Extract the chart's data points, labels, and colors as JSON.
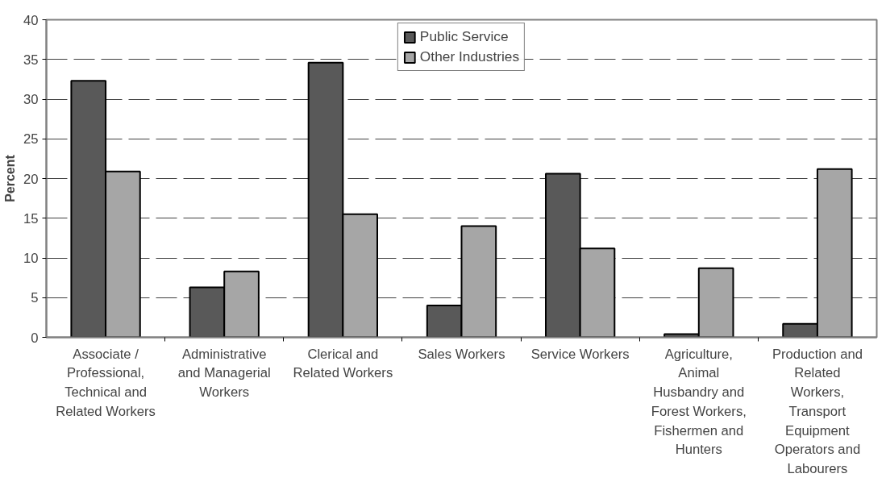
{
  "chart_data": {
    "type": "bar",
    "ylabel": "Percent",
    "categories": [
      "Associate / Professional, Technical and Related Workers",
      "Administrative and Managerial Workers",
      "Clerical and Related Workers",
      "Sales Workers",
      "Service Workers",
      "Agriculture, Animal Husbandry and Forest Workers, Fishermen and Hunters",
      "Production and Related Workers, Transport Equipment Operators and Labourers"
    ],
    "series": [
      {
        "name": "Public Service",
        "color": "#595959",
        "values": [
          32.3,
          6.3,
          34.6,
          4.0,
          20.6,
          0.4,
          1.7
        ]
      },
      {
        "name": "Other Industries",
        "color": "#a6a6a6",
        "values": [
          20.9,
          8.3,
          15.5,
          14.0,
          11.2,
          8.7,
          21.2
        ]
      }
    ],
    "ylim": [
      0,
      40
    ],
    "yticks": [
      0,
      5,
      10,
      15,
      20,
      25,
      30,
      35,
      40
    ],
    "grid": "y",
    "legend": "top"
  }
}
